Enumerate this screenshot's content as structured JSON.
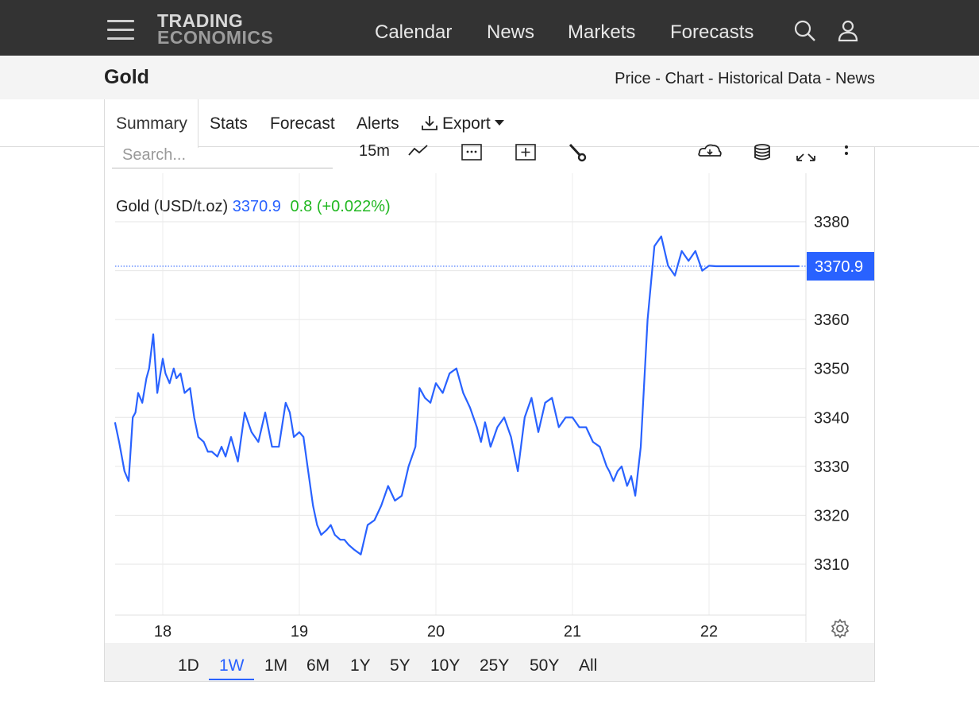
{
  "nav": {
    "logo_line1": "TRADING",
    "logo_line2": "ECONOMICS",
    "links": [
      "Calendar",
      "News",
      "Markets",
      "Forecasts"
    ]
  },
  "header": {
    "title": "Gold",
    "links": [
      "Price",
      "Chart",
      "Historical Data",
      "News"
    ],
    "separator": " - "
  },
  "tabs": [
    "Summary",
    "Stats",
    "Forecast",
    "Alerts",
    "Export"
  ],
  "toolbar": {
    "search_placeholder": "Search...",
    "interval": "15m"
  },
  "legend": {
    "name": "Gold (USD/t.oz)",
    "price": "3370.9",
    "change": "0.8 (+0.022%)"
  },
  "ranges": [
    "1D",
    "1W",
    "1M",
    "6M",
    "1Y",
    "5Y",
    "10Y",
    "25Y",
    "50Y",
    "All"
  ],
  "active_range": "1W",
  "colors": {
    "line": "#2962ff",
    "positive": "#22b822",
    "topbar": "#333333"
  },
  "chart_data": {
    "type": "line",
    "title": "",
    "xlabel": "",
    "ylabel": "",
    "x_ticks": [
      "18",
      "19",
      "20",
      "21",
      "22"
    ],
    "y_ticks": [
      3310,
      3320,
      3330,
      3340,
      3350,
      3360,
      3380
    ],
    "ylim": [
      3300,
      3385
    ],
    "xlim": [
      17.65,
      22.7
    ],
    "last_price_label": "3370.9",
    "series": [
      {
        "x": [
          17.65,
          17.68,
          17.7,
          17.72,
          17.75,
          17.78,
          17.8,
          17.82,
          17.85,
          17.88,
          17.9,
          17.93,
          17.96,
          18.0,
          18.02,
          18.05,
          18.08,
          18.1,
          18.13,
          18.16,
          18.2,
          18.23,
          18.26,
          18.3,
          18.33,
          18.36,
          18.4,
          18.43,
          18.46,
          18.5,
          18.55,
          18.6,
          18.65,
          18.7,
          18.75,
          18.8,
          18.85,
          18.9,
          18.93,
          18.96,
          19.0,
          19.03,
          19.06,
          19.1,
          19.13,
          19.16,
          19.2,
          19.23,
          19.26,
          19.3,
          19.33,
          19.36,
          19.4,
          19.45,
          19.5,
          19.55,
          19.6,
          19.65,
          19.7,
          19.75,
          19.8,
          19.85,
          19.88,
          19.92,
          19.96,
          20.0,
          20.05,
          20.1,
          20.15,
          20.2,
          20.25,
          20.3,
          20.33,
          20.36,
          20.4,
          20.45,
          20.5,
          20.55,
          20.6,
          20.65,
          20.7,
          20.75,
          20.8,
          20.85,
          20.9,
          20.95,
          21.0,
          21.05,
          21.1,
          21.15,
          21.2,
          21.25,
          21.27,
          21.3,
          21.33,
          21.36,
          21.4,
          21.43,
          21.46,
          21.5,
          21.55,
          21.6,
          21.65,
          21.7,
          21.75,
          21.8,
          21.85,
          21.9,
          21.95,
          22.0,
          22.05,
          22.1,
          22.15,
          22.2,
          22.25,
          22.3,
          22.33,
          22.36,
          22.4,
          22.42,
          22.44,
          22.46,
          22.48,
          22.5,
          22.53,
          22.56,
          22.6,
          22.63,
          22.66
        ],
        "y": [
          3339,
          3335,
          3332,
          3329,
          3327,
          3340,
          3341,
          3345,
          3343,
          3348,
          3350,
          3357,
          3345,
          3352,
          3349,
          3347,
          3350,
          3348,
          3349,
          3345,
          3346,
          3340,
          3336,
          3335,
          3333,
          3333,
          3332,
          3334,
          3332,
          3336,
          3331,
          3341,
          3337,
          3335,
          3341,
          3334,
          3334,
          3343,
          3341,
          3336,
          3337,
          3336,
          3330,
          3322,
          3318,
          3316,
          3317,
          3318,
          3316,
          3315,
          3315,
          3314,
          3313,
          3312,
          3318,
          3319,
          3322,
          3326,
          3323,
          3324,
          3330,
          3334,
          3346,
          3344,
          3343,
          3347,
          3345,
          3349,
          3350,
          3345,
          3342,
          3338,
          3335,
          3339,
          3334,
          3338,
          3340,
          3336,
          3329,
          3340,
          3344,
          3337,
          3343,
          3344,
          3338,
          3340,
          3340,
          3338,
          3338,
          3335,
          3334,
          3330,
          3329,
          3327,
          3329,
          3330,
          3326,
          3328,
          3324,
          3334,
          3360,
          3375,
          3377,
          3371,
          3369,
          3374,
          3372,
          3374,
          3370,
          3371,
          3370.9,
          3370.9,
          3370.9,
          3370.9,
          3370.9,
          3370.9,
          3370.9,
          3370.9,
          3370.9,
          3370.9,
          3370.9,
          3370.9,
          3370.9,
          3370.9,
          3370.9,
          3370.9,
          3370.9,
          3370.9,
          3370.9
        ]
      }
    ]
  }
}
